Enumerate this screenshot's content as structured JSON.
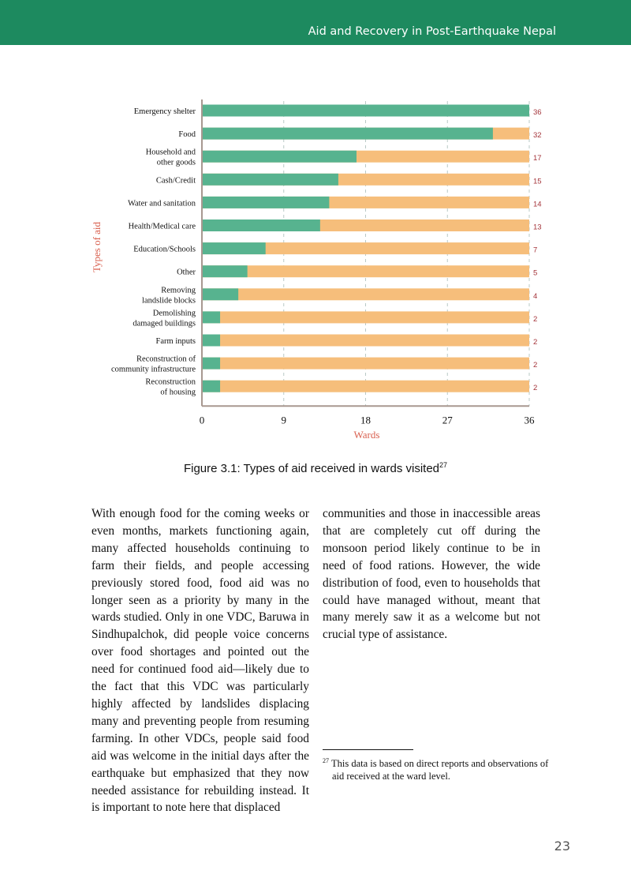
{
  "header": {
    "title": "Aid and Recovery in Post-Earthquake Nepal"
  },
  "chart_data": {
    "type": "bar",
    "orientation": "horizontal",
    "stacked_to_max": true,
    "categories": [
      "Emergency shelter",
      "Food",
      "Household and\nother goods",
      "Cash/Credit",
      "Water and sanitation",
      "Health/Medical care",
      "Education/Schools",
      "Other",
      "Removing\nlandslide blocks",
      "Demolishing\ndamaged buildings",
      "Farm inputs",
      "Reconstruction of\ncommunity infrastructure",
      "Reconstruction\nof housing"
    ],
    "values": [
      36,
      32,
      17,
      15,
      14,
      13,
      7,
      5,
      4,
      2,
      2,
      2,
      2
    ],
    "xlabel": "Wards",
    "ylabel": "Types of aid",
    "xlim": [
      0,
      36
    ],
    "xticks": [
      0,
      9,
      18,
      27,
      36
    ],
    "grid": "vertical dashed",
    "colors": {
      "value": "#57b38f",
      "remainder": "#f6be7b",
      "axis_label": "#d9604f",
      "data_label": "#a4343a",
      "axis": "#a89890"
    }
  },
  "caption": {
    "text": "Figure 3.1: Types of aid received in wards visited",
    "ref": "27"
  },
  "body": {
    "left": "With enough food for the coming weeks or even months, markets functioning again, many affected households continuing to farm their fields, and people accessing previously stored food, food aid was no longer seen as a priority by many in the wards studied. Only in one VDC, Baruwa in Sindhupalchok, did people voice concerns over food shortages and pointed out the need for continued food aid—likely due to the fact that this VDC was particularly highly affected by landslides displacing many and preventing people from resuming farming. In other VDCs, people said food aid was welcome in the initial days after the earthquake but emphasized that they now needed assistance for rebuilding instead. It is important to note here that displaced",
    "right": "communities and those in inaccessible areas that are completely cut off during the monsoon period likely continue to be in need of food rations. However, the wide distribution of food, even to households that could have managed without, meant that many merely saw it as a welcome but not crucial type of assistance."
  },
  "footnote": {
    "num": "27",
    "text": "This data is based on direct reports and observations of aid received at the ward level."
  },
  "page_number": "23"
}
